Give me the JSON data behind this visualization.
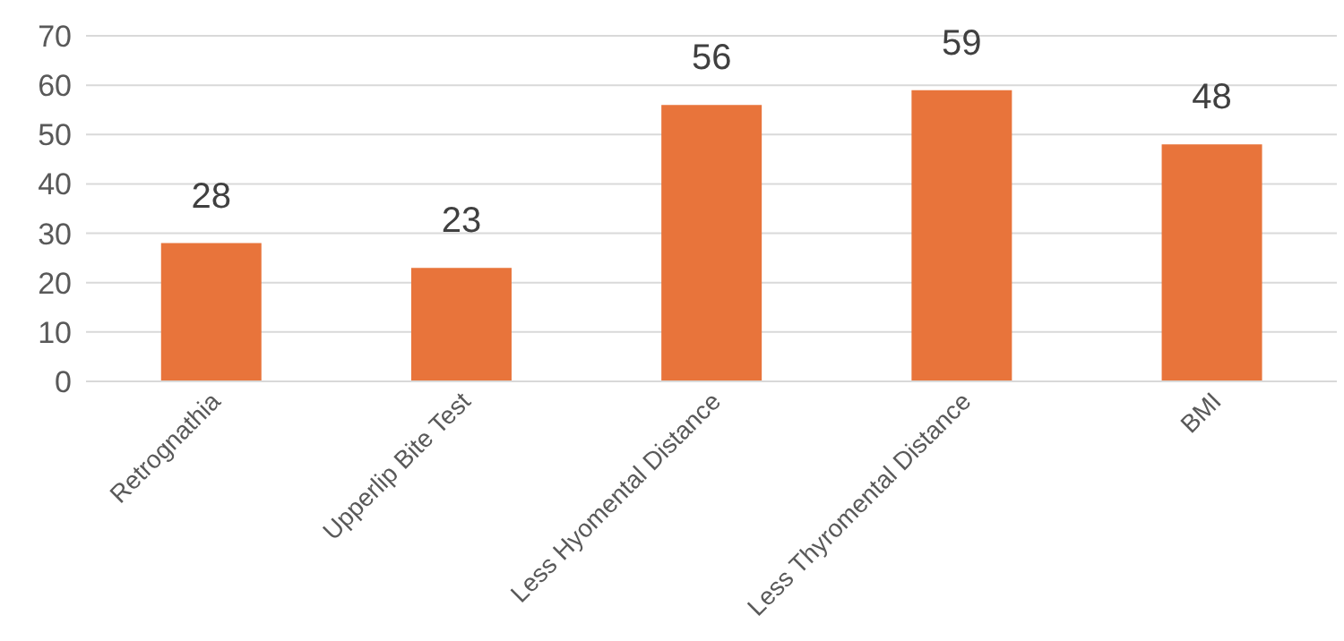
{
  "chart_data": {
    "type": "bar",
    "categories": [
      "Retrognathia",
      "Upperlip Bite Test",
      "Less Hyomental Distance",
      "Less Thyromental Distance",
      "BMI"
    ],
    "values": [
      28,
      23,
      56,
      59,
      48
    ],
    "color": "#e8743b",
    "ylim": [
      0,
      70
    ],
    "yticks": [
      0,
      10,
      20,
      30,
      40,
      50,
      60,
      70
    ],
    "grid": "y",
    "data_labels": true
  }
}
